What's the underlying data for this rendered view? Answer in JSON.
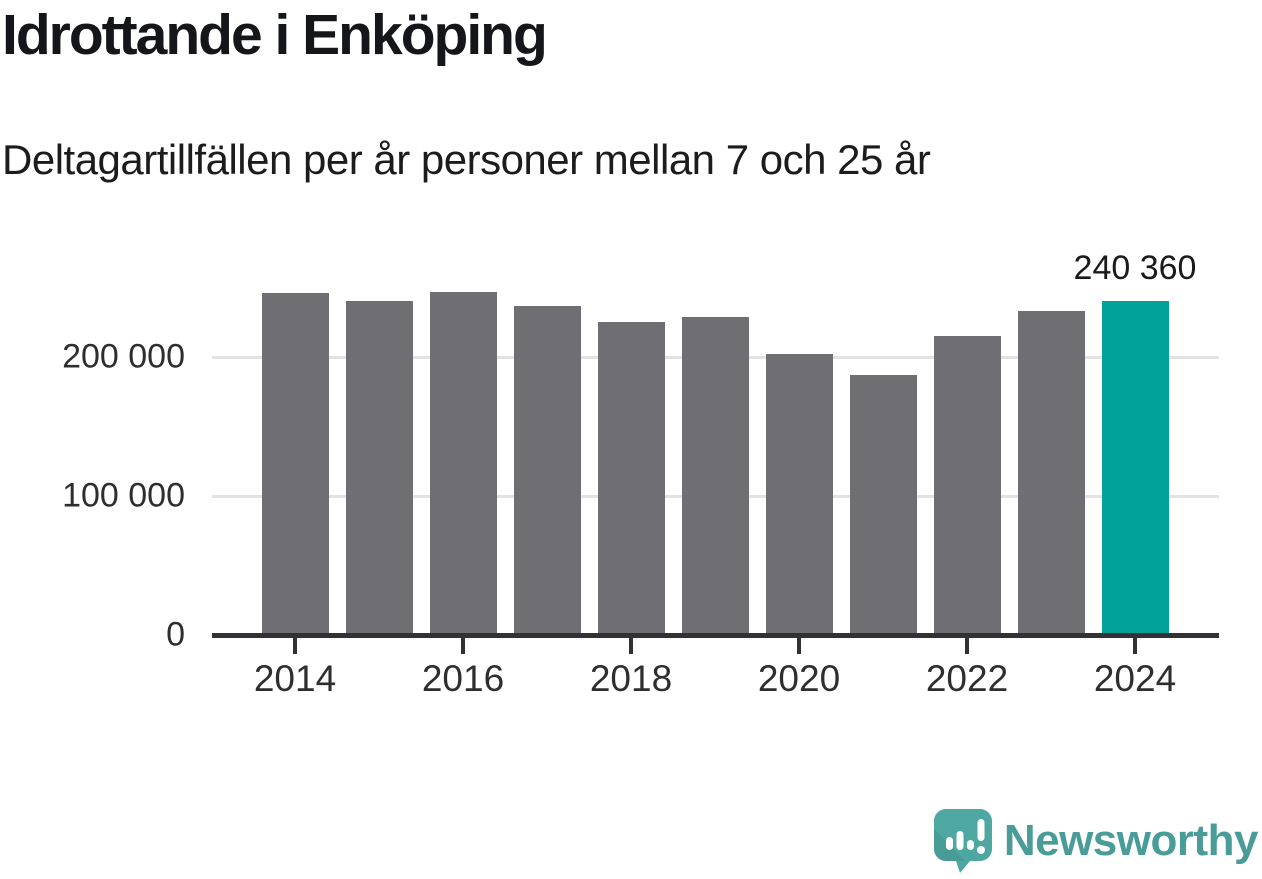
{
  "header": {
    "title": "Idrottande i Enköping",
    "subtitle": "Deltagartillfällen per år personer mellan 7 och 25 år"
  },
  "chart_data": {
    "type": "bar",
    "title": "Idrottande i Enköping",
    "subtitle": "Deltagartillfällen per år personer mellan 7 och 25 år",
    "xlabel": "",
    "ylabel": "",
    "categories": [
      "2014",
      "2015",
      "2016",
      "2017",
      "2018",
      "2019",
      "2020",
      "2021",
      "2022",
      "2023",
      "2024"
    ],
    "values": [
      246000,
      240000,
      246500,
      237000,
      225000,
      228500,
      202500,
      187000,
      215000,
      233000,
      240360
    ],
    "highlight_index": 10,
    "highlight_label": "240 360",
    "ylim": [
      0,
      250000
    ],
    "yticks": [
      {
        "value": 0,
        "label": "0"
      },
      {
        "value": 100000,
        "label": "100 000"
      },
      {
        "value": 200000,
        "label": "200 000"
      }
    ],
    "xtick_labels": [
      "2014",
      "2016",
      "2018",
      "2020",
      "2022",
      "2024"
    ],
    "grid": "horizontal-only",
    "legend": "none",
    "colors": {
      "bar": "#6E6E73",
      "highlight": "#00A29A",
      "axis": "#323236",
      "gridline": "#e3e3e3"
    }
  },
  "footer": {
    "logo_text": "Newsworthy",
    "logo_text_color": "#4A9C99",
    "logo_icon_color": "#4FA7A2"
  }
}
